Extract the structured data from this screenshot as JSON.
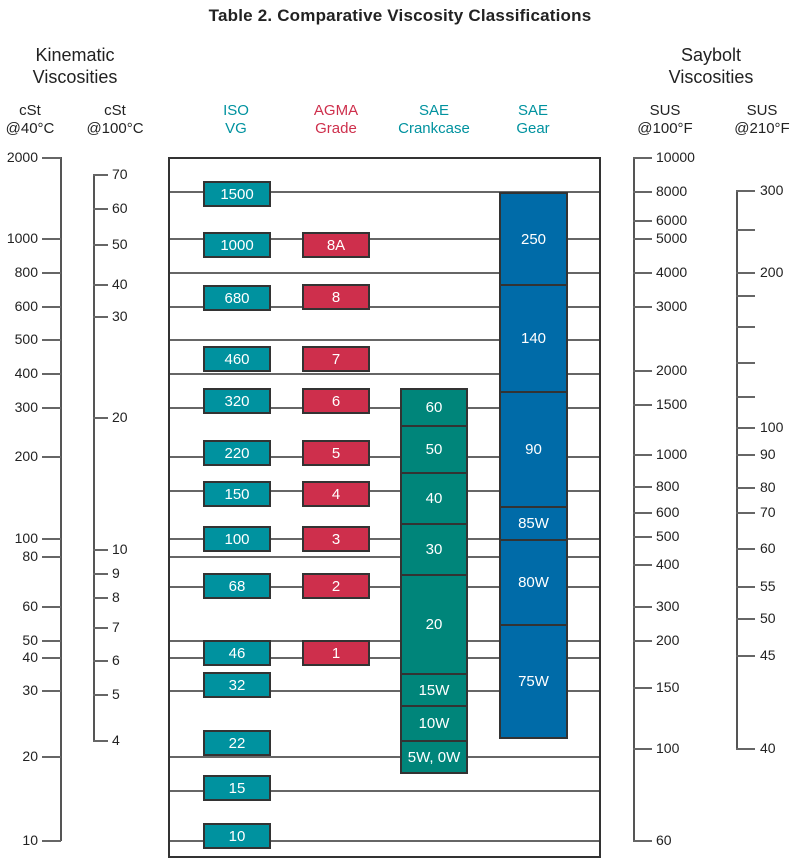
{
  "title": "Table 2. Comparative Viscosity Classifications",
  "headers": {
    "kinematic": "Kinematic Viscosities",
    "saybolt": "Saybolt Viscosities",
    "cst40": [
      "cSt",
      "@40°C"
    ],
    "cst100": [
      "cSt",
      "@100°C"
    ],
    "iso": [
      "ISO",
      "VG"
    ],
    "agma": [
      "AGMA",
      "Grade"
    ],
    "sae_crankcase": [
      "SAE",
      "Crankcase"
    ],
    "sae_gear": [
      "SAE",
      "Gear"
    ],
    "sus100": [
      "SUS",
      "@100°F"
    ],
    "sus210": [
      "SUS",
      "@210°F"
    ]
  },
  "colors": {
    "iso": "#00929f",
    "agma": "#ce2f4c",
    "sae_crankcase": "#00857a",
    "sae_gear": "#006ba8"
  },
  "axes": {
    "cst40": [
      "2000",
      "1000",
      "800",
      "600",
      "500",
      "400",
      "300",
      "200",
      "100",
      "80",
      "60",
      "50",
      "40",
      "30",
      "20",
      "10"
    ],
    "cst100": [
      "70",
      "60",
      "50",
      "40",
      "30",
      "20",
      "10",
      "9",
      "8",
      "7",
      "6",
      "5",
      "4"
    ],
    "sus100": [
      "10000",
      "8000",
      "6000",
      "5000",
      "4000",
      "3000",
      "2000",
      "1500",
      "1000",
      "800",
      "600",
      "500",
      "400",
      "300",
      "200",
      "150",
      "100",
      "60"
    ],
    "sus210": [
      "300",
      "",
      "200",
      "",
      "",
      "",
      "",
      "100",
      "90",
      "80",
      "70",
      "60",
      "55",
      "50",
      "45",
      "40"
    ]
  },
  "iso_vg": [
    "1500",
    "1000",
    "680",
    "460",
    "320",
    "220",
    "150",
    "100",
    "68",
    "46",
    "32",
    "22",
    "15",
    "10"
  ],
  "agma": [
    "8A",
    "8",
    "7",
    "6",
    "5",
    "4",
    "3",
    "2",
    "1"
  ],
  "sae_crankcase": [
    "60",
    "50",
    "40",
    "30",
    "20",
    "15W",
    "10W",
    "5W, 0W"
  ],
  "sae_gear": [
    "250",
    "140",
    "90",
    "85W",
    "80W",
    "75W"
  ]
}
